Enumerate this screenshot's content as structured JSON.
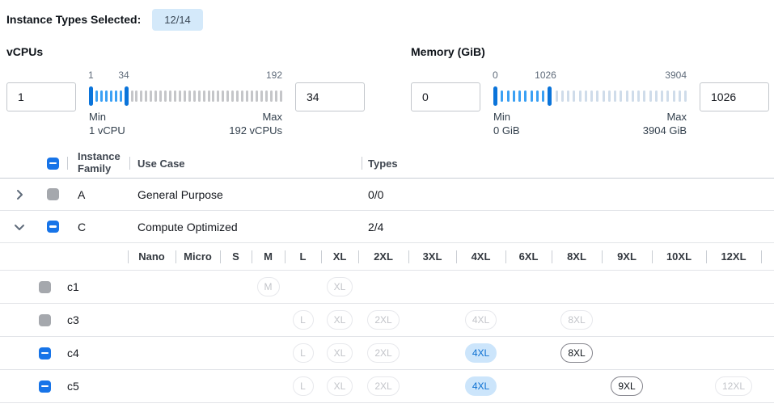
{
  "header": {
    "label": "Instance Types Selected:",
    "count_badge": "12/14"
  },
  "filters": [
    {
      "id": "vcpus",
      "title": "vCPUs",
      "from_value": "1",
      "to_value": "34",
      "scale_labels": [
        {
          "label": "1",
          "pct": 1
        },
        {
          "label": "34",
          "pct": 18
        },
        {
          "label": "192",
          "pct": 100
        }
      ],
      "min": {
        "label": "Min",
        "value": "1 vCPU"
      },
      "max": {
        "label": "Max",
        "value": "192 vCPUs"
      },
      "slider": {
        "ticks": 40,
        "handle_low": 0,
        "handle_high": 7,
        "inactive_color": "#c5c6c9"
      }
    },
    {
      "id": "memory",
      "title": "Memory (GiB)",
      "from_value": "0",
      "to_value": "1026",
      "scale_labels": [
        {
          "label": "0",
          "pct": 1
        },
        {
          "label": "1026",
          "pct": 27
        },
        {
          "label": "3904",
          "pct": 100
        }
      ],
      "min": {
        "label": "Min",
        "value": "0 GiB"
      },
      "max": {
        "label": "Max",
        "value": "3904 GiB"
      },
      "slider": {
        "ticks": 33,
        "handle_low": 0,
        "handle_high": 9,
        "inactive_color": "#cfdcea"
      }
    }
  ],
  "table": {
    "columns": {
      "family": "Instance Family",
      "use_case": "Use Case",
      "types": "Types"
    },
    "family_rows": [
      {
        "family": "A",
        "use_case": "General Purpose",
        "types": "0/0",
        "checkbox": "disabled",
        "expanded": false
      },
      {
        "family": "C",
        "use_case": "Compute Optimized",
        "types": "2/4",
        "checkbox": "indeterminate",
        "expanded": true
      }
    ],
    "size_columns": [
      "Nano",
      "Micro",
      "S",
      "M",
      "L",
      "XL",
      "2XL",
      "3XL",
      "4XL",
      "6XL",
      "8XL",
      "9XL",
      "10XL",
      "12XL"
    ],
    "instance_rows": [
      {
        "name": "c1",
        "checkbox": "disabled",
        "badges": [
          {
            "size": "M",
            "state": "disabled"
          },
          {
            "size": "XL",
            "state": "disabled"
          }
        ]
      },
      {
        "name": "c3",
        "checkbox": "disabled",
        "badges": [
          {
            "size": "L",
            "state": "disabled"
          },
          {
            "size": "XL",
            "state": "disabled"
          },
          {
            "size": "2XL",
            "state": "disabled"
          },
          {
            "size": "4XL",
            "state": "disabled"
          },
          {
            "size": "8XL",
            "state": "disabled"
          }
        ]
      },
      {
        "name": "c4",
        "checkbox": "indeterminate",
        "badges": [
          {
            "size": "L",
            "state": "disabled"
          },
          {
            "size": "XL",
            "state": "disabled"
          },
          {
            "size": "2XL",
            "state": "disabled"
          },
          {
            "size": "4XL",
            "state": "selected"
          },
          {
            "size": "8XL",
            "state": "available"
          }
        ]
      },
      {
        "name": "c5",
        "checkbox": "indeterminate",
        "badges": [
          {
            "size": "L",
            "state": "disabled"
          },
          {
            "size": "XL",
            "state": "disabled"
          },
          {
            "size": "2XL",
            "state": "disabled"
          },
          {
            "size": "4XL",
            "state": "selected"
          },
          {
            "size": "9XL",
            "state": "available"
          },
          {
            "size": "12XL",
            "state": "disabled"
          }
        ]
      }
    ]
  },
  "colors": {
    "accent_blue": "#1774e8",
    "slider_handle": "#0b74da",
    "slider_active_tick": "#3aa0f4",
    "selected_badge_bg": "#cce5fb",
    "selected_badge_text": "#0b6fd1",
    "chip_bg": "#d4e9fa",
    "disabled_checkbox": "#a5a8ad"
  }
}
